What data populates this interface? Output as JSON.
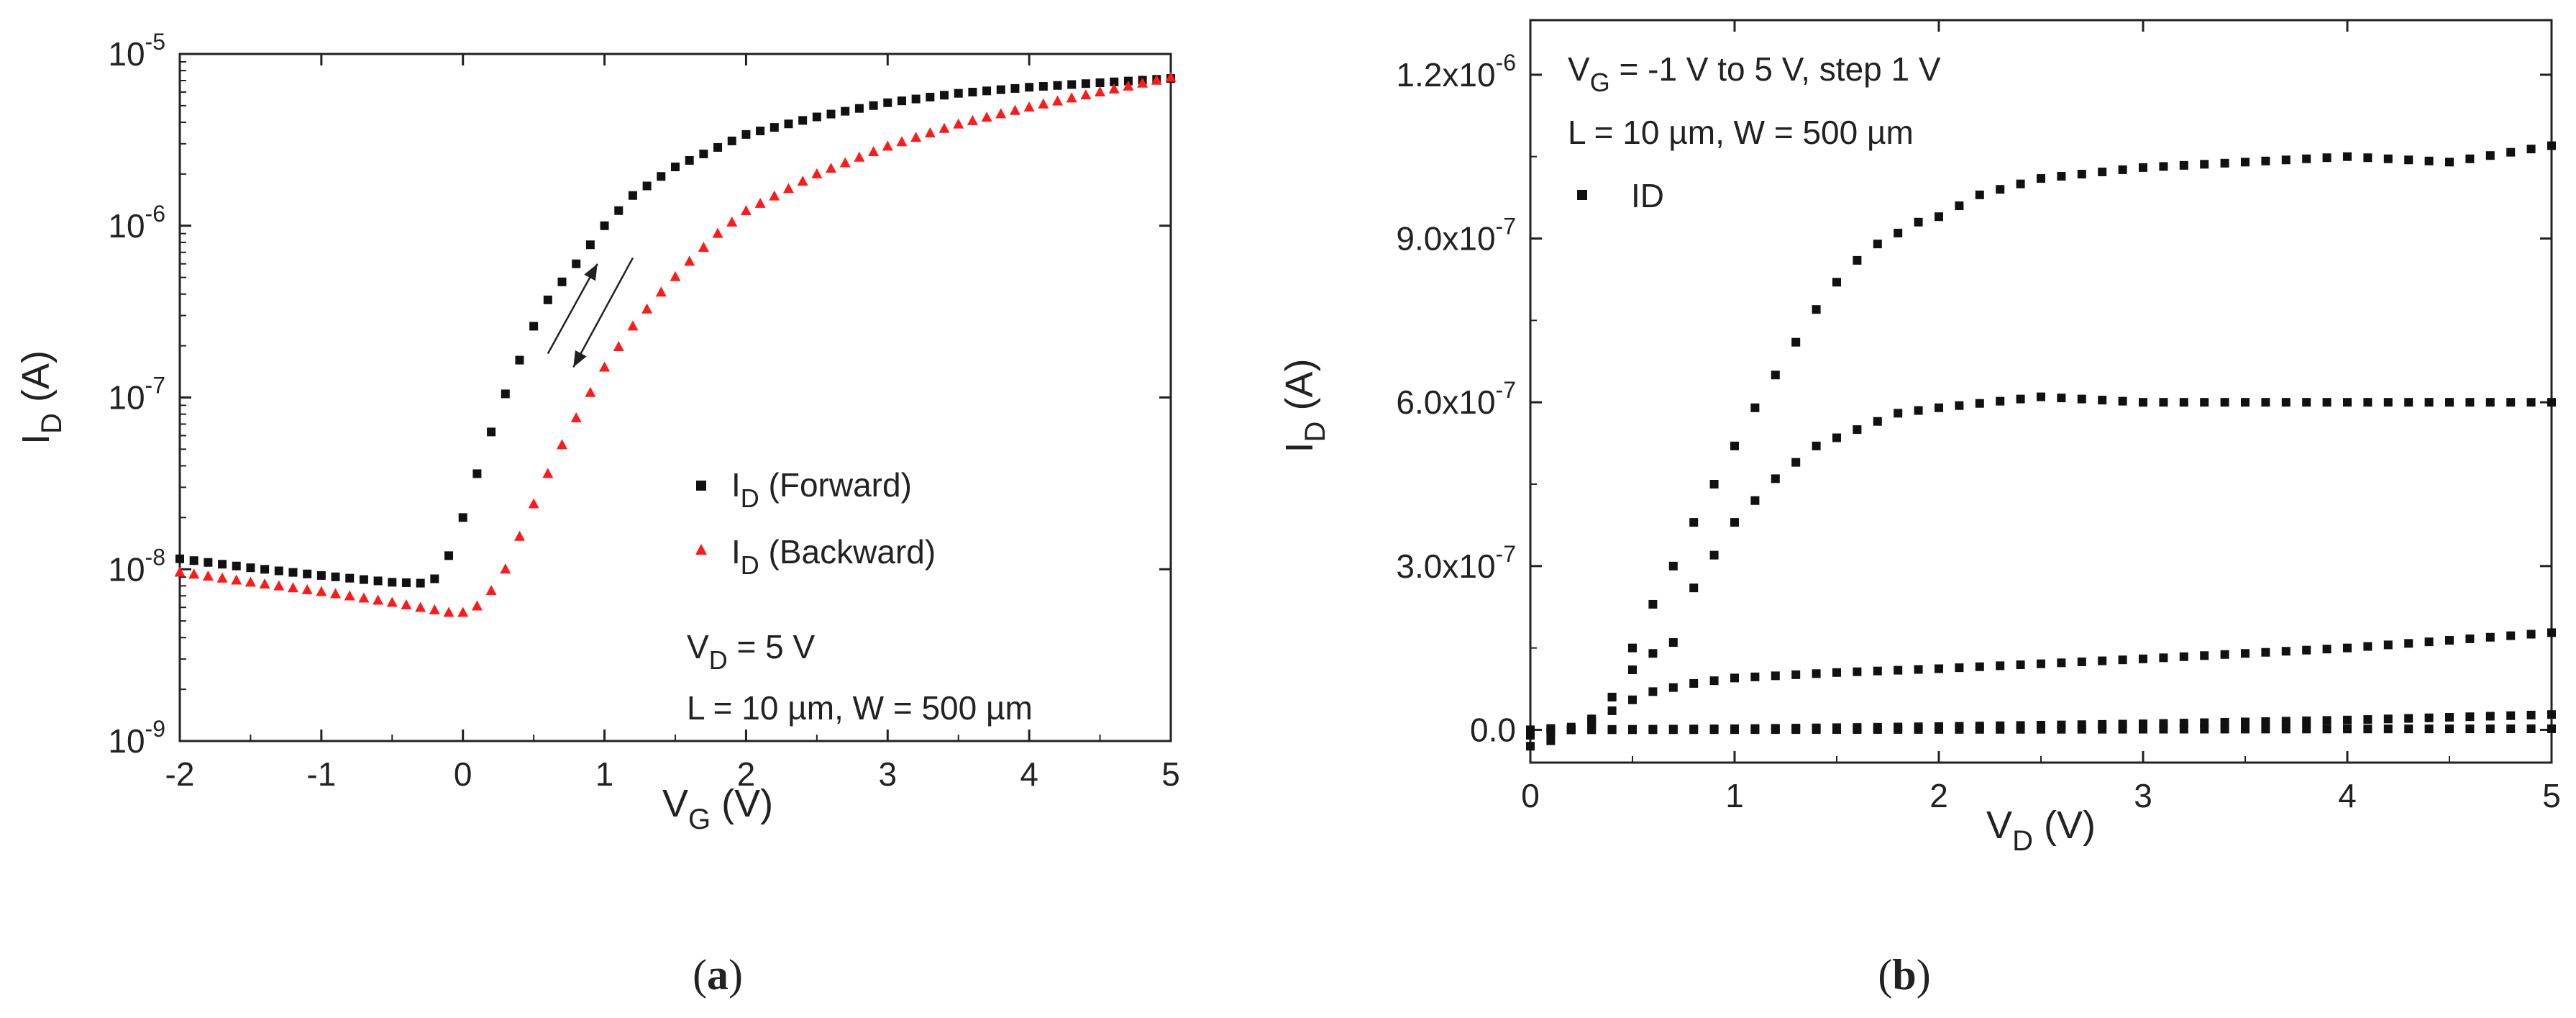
{
  "chart_data": [
    {
      "panel": "a",
      "type": "scatter",
      "xlabel_main": "V",
      "xlabel_sub": "G",
      "xlabel_unit": " (V)",
      "ylabel_main": "I",
      "ylabel_sub": "D",
      "ylabel_unit": " (A)",
      "yscale": "log",
      "xlim": [
        -2,
        5
      ],
      "ylim": [
        1e-09,
        1e-05
      ],
      "xticks": [
        -2,
        -1,
        0,
        1,
        2,
        3,
        4,
        5
      ],
      "ytick_labels": [
        {
          "value": 1e-09,
          "base": "10",
          "exp": "-9"
        },
        {
          "value": 1e-08,
          "base": "10",
          "exp": "-8"
        },
        {
          "value": 1e-07,
          "base": "10",
          "exp": "-7"
        },
        {
          "value": 1e-06,
          "base": "10",
          "exp": "-6"
        },
        {
          "value": 1e-05,
          "base": "10",
          "exp": "-5"
        }
      ],
      "series": [
        {
          "name": "Forward",
          "legend_main": "I",
          "legend_sub": "D",
          "legend_rest": " (Forward)",
          "marker": "square",
          "color": "#111111",
          "anchors": [
            [
              -2,
              1.15e-08
            ],
            [
              -1.5,
              1.02e-08
            ],
            [
              -1,
              9.2e-09
            ],
            [
              -0.5,
              8.4e-09
            ],
            [
              -0.3,
              8.3e-09
            ],
            [
              -0.2,
              8.8e-09
            ],
            [
              -0.1,
              1.2e-08
            ],
            [
              0,
              2e-08
            ],
            [
              0.1,
              3.6e-08
            ],
            [
              0.2,
              6.3e-08
            ],
            [
              0.3,
              1.05e-07
            ],
            [
              0.4,
              1.65e-07
            ],
            [
              0.5,
              2.6e-07
            ],
            [
              0.6,
              3.7e-07
            ],
            [
              0.8,
              6e-07
            ],
            [
              1.0,
              1e-06
            ],
            [
              1.2,
              1.5e-06
            ],
            [
              1.5,
              2.2e-06
            ],
            [
              2.0,
              3.4e-06
            ],
            [
              2.5,
              4.3e-06
            ],
            [
              3.0,
              5.2e-06
            ],
            [
              3.5,
              5.9e-06
            ],
            [
              4.0,
              6.4e-06
            ],
            [
              4.5,
              6.8e-06
            ],
            [
              5.0,
              7.2e-06
            ]
          ],
          "step": 0.1
        },
        {
          "name": "Backward",
          "legend_main": "I",
          "legend_sub": "D",
          "legend_rest": " (Backward)",
          "marker": "triangle",
          "color": "#ff1a1a",
          "anchors": [
            [
              -2,
              9.6e-09
            ],
            [
              -1.5,
              8.4e-09
            ],
            [
              -1,
              7.4e-09
            ],
            [
              -0.5,
              6.4e-09
            ],
            [
              -0.1,
              5.6e-09
            ],
            [
              0,
              5.6e-09
            ],
            [
              0.1,
              6.1e-09
            ],
            [
              0.2,
              7.5e-09
            ],
            [
              0.3,
              1e-08
            ],
            [
              0.4,
              1.55e-08
            ],
            [
              0.5,
              2.4e-08
            ],
            [
              0.6,
              3.6e-08
            ],
            [
              0.7,
              5.3e-08
            ],
            [
              0.8,
              7.6e-08
            ],
            [
              1.0,
              1.5e-07
            ],
            [
              1.2,
              2.6e-07
            ],
            [
              1.4,
              4.1e-07
            ],
            [
              1.6,
              6.2e-07
            ],
            [
              1.8,
              9e-07
            ],
            [
              2.0,
              1.22e-06
            ],
            [
              2.5,
              2e-06
            ],
            [
              3.0,
              2.9e-06
            ],
            [
              3.5,
              3.9e-06
            ],
            [
              4.0,
              4.9e-06
            ],
            [
              4.5,
              6e-06
            ],
            [
              5.0,
              7.3e-06
            ]
          ],
          "step": 0.1
        }
      ],
      "annotations": [
        {
          "main": "V",
          "sub": "D",
          "rest": " = 5 V"
        },
        {
          "main": "L = 10 µm, W = 500 µm",
          "sub": "",
          "rest": ""
        }
      ],
      "arrows": [
        {
          "direction": "up",
          "from": [
            0.6,
            1.8e-07
          ],
          "to": [
            0.95,
            6e-07
          ]
        },
        {
          "direction": "down",
          "from": [
            1.2,
            6.5e-07
          ],
          "to": [
            0.78,
            1.5e-07
          ]
        }
      ],
      "panel_label": "(a)"
    },
    {
      "panel": "b",
      "type": "scatter",
      "xlabel_main": "V",
      "xlabel_sub": "D",
      "xlabel_unit": " (V)",
      "ylabel_main": "I",
      "ylabel_sub": "D",
      "ylabel_unit": " (A)",
      "yscale": "linear",
      "xlim": [
        0,
        5
      ],
      "ylim": [
        -6e-08,
        1.3e-06
      ],
      "xticks": [
        0,
        1,
        2,
        3,
        4,
        5
      ],
      "ytick_labels": [
        {
          "value": 0,
          "text": "0.0",
          "exp": ""
        },
        {
          "value": 3e-07,
          "text": "3.0x10",
          "exp": "-7"
        },
        {
          "value": 6e-07,
          "text": "6.0x10",
          "exp": "-7"
        },
        {
          "value": 9e-07,
          "text": "9.0x10",
          "exp": "-7"
        },
        {
          "value": 1.2e-06,
          "text": "1.2x10",
          "exp": "-6"
        }
      ],
      "series": [
        {
          "name": "ID curve 1",
          "marker": "square",
          "color": "#111111",
          "anchors": [
            [
              0,
              -3e-08
            ],
            [
              0.1,
              -2e-08
            ],
            [
              0.2,
              0
            ],
            [
              0.3,
              1.5e-08
            ],
            [
              0.4,
              6e-08
            ],
            [
              0.5,
              1.5e-07
            ],
            [
              0.6,
              2.3e-07
            ],
            [
              0.7,
              3e-07
            ],
            [
              0.8,
              3.8e-07
            ],
            [
              0.9,
              4.5e-07
            ],
            [
              1.0,
              5.2e-07
            ],
            [
              1.1,
              5.9e-07
            ],
            [
              1.2,
              6.5e-07
            ],
            [
              1.3,
              7.1e-07
            ],
            [
              1.4,
              7.7e-07
            ],
            [
              1.5,
              8.2e-07
            ],
            [
              1.6,
              8.6e-07
            ],
            [
              1.7,
              8.9e-07
            ],
            [
              1.9,
              9.3e-07
            ],
            [
              2.0,
              9.4e-07
            ],
            [
              2.2,
              9.8e-07
            ],
            [
              2.5,
              1.01e-06
            ],
            [
              3.0,
              1.03e-06
            ],
            [
              3.5,
              1.04e-06
            ],
            [
              4.0,
              1.05e-06
            ],
            [
              4.5,
              1.04e-06
            ],
            [
              5.0,
              1.07e-06
            ]
          ],
          "step": 0.1
        },
        {
          "name": "ID curve 2",
          "marker": "square",
          "color": "#111111",
          "anchors": [
            [
              0,
              -1e-08
            ],
            [
              0.2,
              0
            ],
            [
              0.3,
              2e-08
            ],
            [
              0.4,
              6e-08
            ],
            [
              0.5,
              1.1e-07
            ],
            [
              0.6,
              1.4e-07
            ],
            [
              0.7,
              1.6e-07
            ],
            [
              0.8,
              2.6e-07
            ],
            [
              0.9,
              3.2e-07
            ],
            [
              1.0,
              3.8e-07
            ],
            [
              1.1,
              4.2e-07
            ],
            [
              1.2,
              4.6e-07
            ],
            [
              1.4,
              5.2e-07
            ],
            [
              1.6,
              5.5e-07
            ],
            [
              1.8,
              5.8e-07
            ],
            [
              2.0,
              5.9e-07
            ],
            [
              2.5,
              6.1e-07
            ],
            [
              3.0,
              6e-07
            ],
            [
              4.0,
              6e-07
            ],
            [
              5.0,
              6e-07
            ]
          ],
          "step": 0.1
        },
        {
          "name": "ID curve 3",
          "marker": "square",
          "color": "#111111",
          "anchors": [
            [
              0,
              0
            ],
            [
              0.2,
              5e-09
            ],
            [
              0.3,
              1.5e-08
            ],
            [
              0.4,
              3.5e-08
            ],
            [
              0.5,
              5.5e-08
            ],
            [
              0.6,
              7e-08
            ],
            [
              0.8,
              8.5e-08
            ],
            [
              1.0,
              9.5e-08
            ],
            [
              1.5,
              1.05e-07
            ],
            [
              2.0,
              1.12e-07
            ],
            [
              3.0,
              1.3e-07
            ],
            [
              4.0,
              1.5e-07
            ],
            [
              5.0,
              1.78e-07
            ]
          ],
          "step": 0.1
        },
        {
          "name": "ID curve 4",
          "marker": "square",
          "color": "#111111",
          "anchors": [
            [
              0,
              0
            ],
            [
              1,
              2e-09
            ],
            [
              2,
              6e-09
            ],
            [
              3,
              1.1e-08
            ],
            [
              4,
              1.8e-08
            ],
            [
              5,
              2.8e-08
            ]
          ],
          "step": 0.1
        },
        {
          "name": "ID curve 5",
          "marker": "square",
          "color": "#111111",
          "anchors": [
            [
              0,
              0
            ],
            [
              5,
              2e-09
            ]
          ],
          "step": 0.1
        }
      ],
      "legend": {
        "label": "ID",
        "marker": "square"
      },
      "annotations": [
        {
          "main": "V",
          "sub": "G",
          "rest": " = -1 V to 5 V, step 1 V"
        },
        {
          "main": "L = 10 µm, W = 500 µm",
          "sub": "",
          "rest": ""
        }
      ],
      "panel_label": "(b)"
    }
  ]
}
